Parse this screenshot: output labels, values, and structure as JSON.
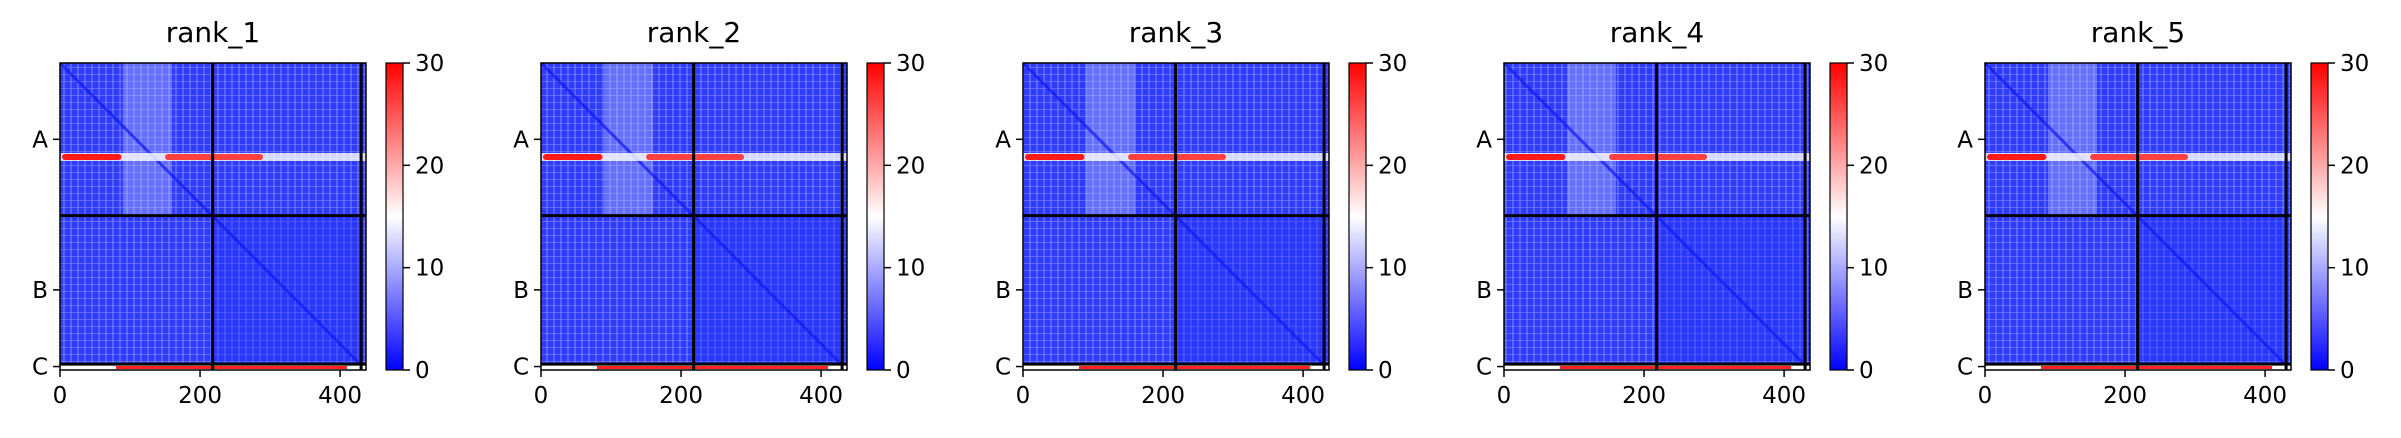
{
  "chart_data": {
    "type": "heatmap",
    "colormap": {
      "name": "bwr",
      "low": "#0000ff",
      "mid": "#ffffff",
      "high": "#ff0000"
    },
    "clim": [
      0,
      30
    ],
    "colorbar_ticks": [
      "0",
      "10",
      "20",
      "30"
    ],
    "x_ticks": [
      0,
      200,
      400
    ],
    "x_ticklabels": [
      "0",
      "200",
      "400"
    ],
    "x_range": [
      0,
      437
    ],
    "chain_boundaries": [
      218,
      430
    ],
    "chains": [
      {
        "label": "A",
        "start": 0,
        "end": 218
      },
      {
        "label": "B",
        "start": 218,
        "end": 430
      },
      {
        "label": "C",
        "start": 430,
        "end": 437
      }
    ],
    "panels": [
      {
        "title": "rank_1"
      },
      {
        "title": "rank_2"
      },
      {
        "title": "rank_3"
      },
      {
        "title": "rank_4"
      },
      {
        "title": "rank_5"
      }
    ]
  }
}
